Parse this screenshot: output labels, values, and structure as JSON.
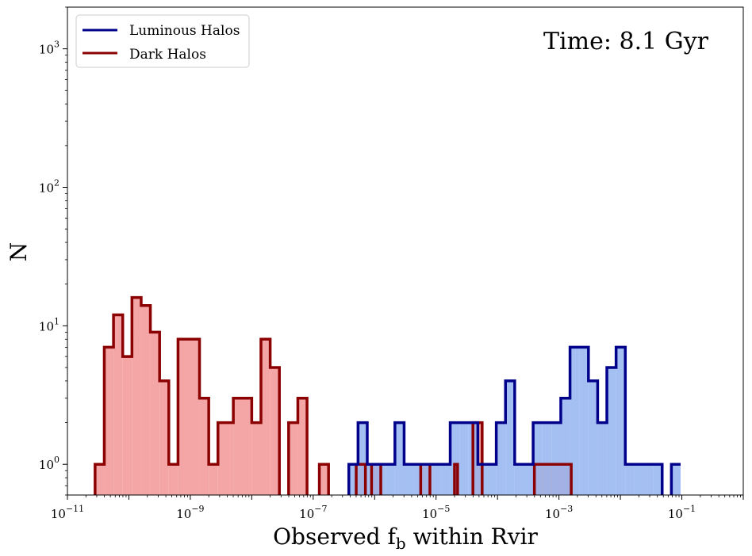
{
  "chart_data": {
    "type": "bar",
    "subtype": "step-histogram",
    "xscale": "log",
    "yscale": "log",
    "xlim": [
      1e-11,
      1
    ],
    "ylim": [
      0.6,
      2000
    ],
    "xlabel": "Observed f_b within Rvir",
    "ylabel": "N",
    "annotation": "Time: 8.1 Gyr",
    "legend_position": "upper-left",
    "x_ticks": [
      {
        "value": 1e-11,
        "base": "10",
        "exp": "−11"
      },
      {
        "value": 1e-09,
        "base": "10",
        "exp": "−9"
      },
      {
        "value": 1e-07,
        "base": "10",
        "exp": "−7"
      },
      {
        "value": 1e-05,
        "base": "10",
        "exp": "−5"
      },
      {
        "value": 0.001,
        "base": "10",
        "exp": "−3"
      },
      {
        "value": 0.1,
        "base": "10",
        "exp": "−1"
      }
    ],
    "y_ticks": [
      {
        "value": 1,
        "base": "10",
        "exp": "0"
      },
      {
        "value": 10,
        "base": "10",
        "exp": "1"
      },
      {
        "value": 100,
        "base": "10",
        "exp": "2"
      },
      {
        "value": 1000,
        "base": "10",
        "exp": "3"
      }
    ],
    "series": [
      {
        "name": "Dark Halos",
        "edge_color": "#8b0000",
        "fill_color": "#f4a6a6",
        "log10_bin_edges": [
          -10.55,
          -10.4,
          -10.25,
          -10.1,
          -9.95,
          -9.8,
          -9.65,
          -9.5,
          -9.35,
          -9.2,
          -8.85,
          -8.7,
          -8.55,
          -8.3,
          -8.0,
          -7.85,
          -7.7,
          -7.55,
          -7.4,
          -7.25,
          -7.1,
          -6.9,
          -6.75,
          -6.6,
          -6.3,
          -6.15,
          -6.05,
          -5.9,
          -5.75,
          -5.25,
          -5.1,
          -4.8,
          -4.7,
          -4.65,
          -4.55,
          -4.45,
          -4.4,
          -4.25,
          -4.1,
          -3.6,
          -3.4,
          -2.8
        ],
        "counts": [
          1,
          7,
          12,
          6,
          16,
          14,
          9,
          4,
          1,
          8,
          3,
          1,
          2,
          3,
          2,
          8,
          5,
          0,
          2,
          3,
          0,
          1,
          0,
          0,
          1,
          0,
          1,
          0,
          0,
          1,
          0,
          0,
          1,
          0,
          0,
          0,
          2,
          0,
          0,
          0,
          1,
          0
        ]
      },
      {
        "name": "Luminous Halos",
        "edge_color": "#00008b",
        "fill_color": "#94b4f0",
        "log10_bin_edges": [
          -6.42,
          -6.27,
          -6.12,
          -5.97,
          -5.82,
          -5.67,
          -5.52,
          -5.37,
          -5.22,
          -5.07,
          -4.92,
          -4.77,
          -4.62,
          -4.47,
          -4.32,
          -4.17,
          -4.02,
          -3.87,
          -3.72,
          -3.57,
          -3.42,
          -3.27,
          -3.12,
          -2.97,
          -2.82,
          -2.67,
          -2.52,
          -2.37,
          -2.22,
          -2.07,
          -1.92,
          -1.77,
          -1.62,
          -1.47,
          -1.32,
          -1.17,
          -1.02
        ],
        "counts": [
          1,
          2,
          1,
          1,
          1,
          2,
          1,
          1,
          1,
          1,
          1,
          2,
          2,
          2,
          1,
          1,
          2,
          4,
          1,
          1,
          2,
          2,
          2,
          3,
          7,
          7,
          4,
          2,
          5,
          7,
          1,
          1,
          1,
          1,
          0,
          1,
          1
        ]
      }
    ]
  }
}
